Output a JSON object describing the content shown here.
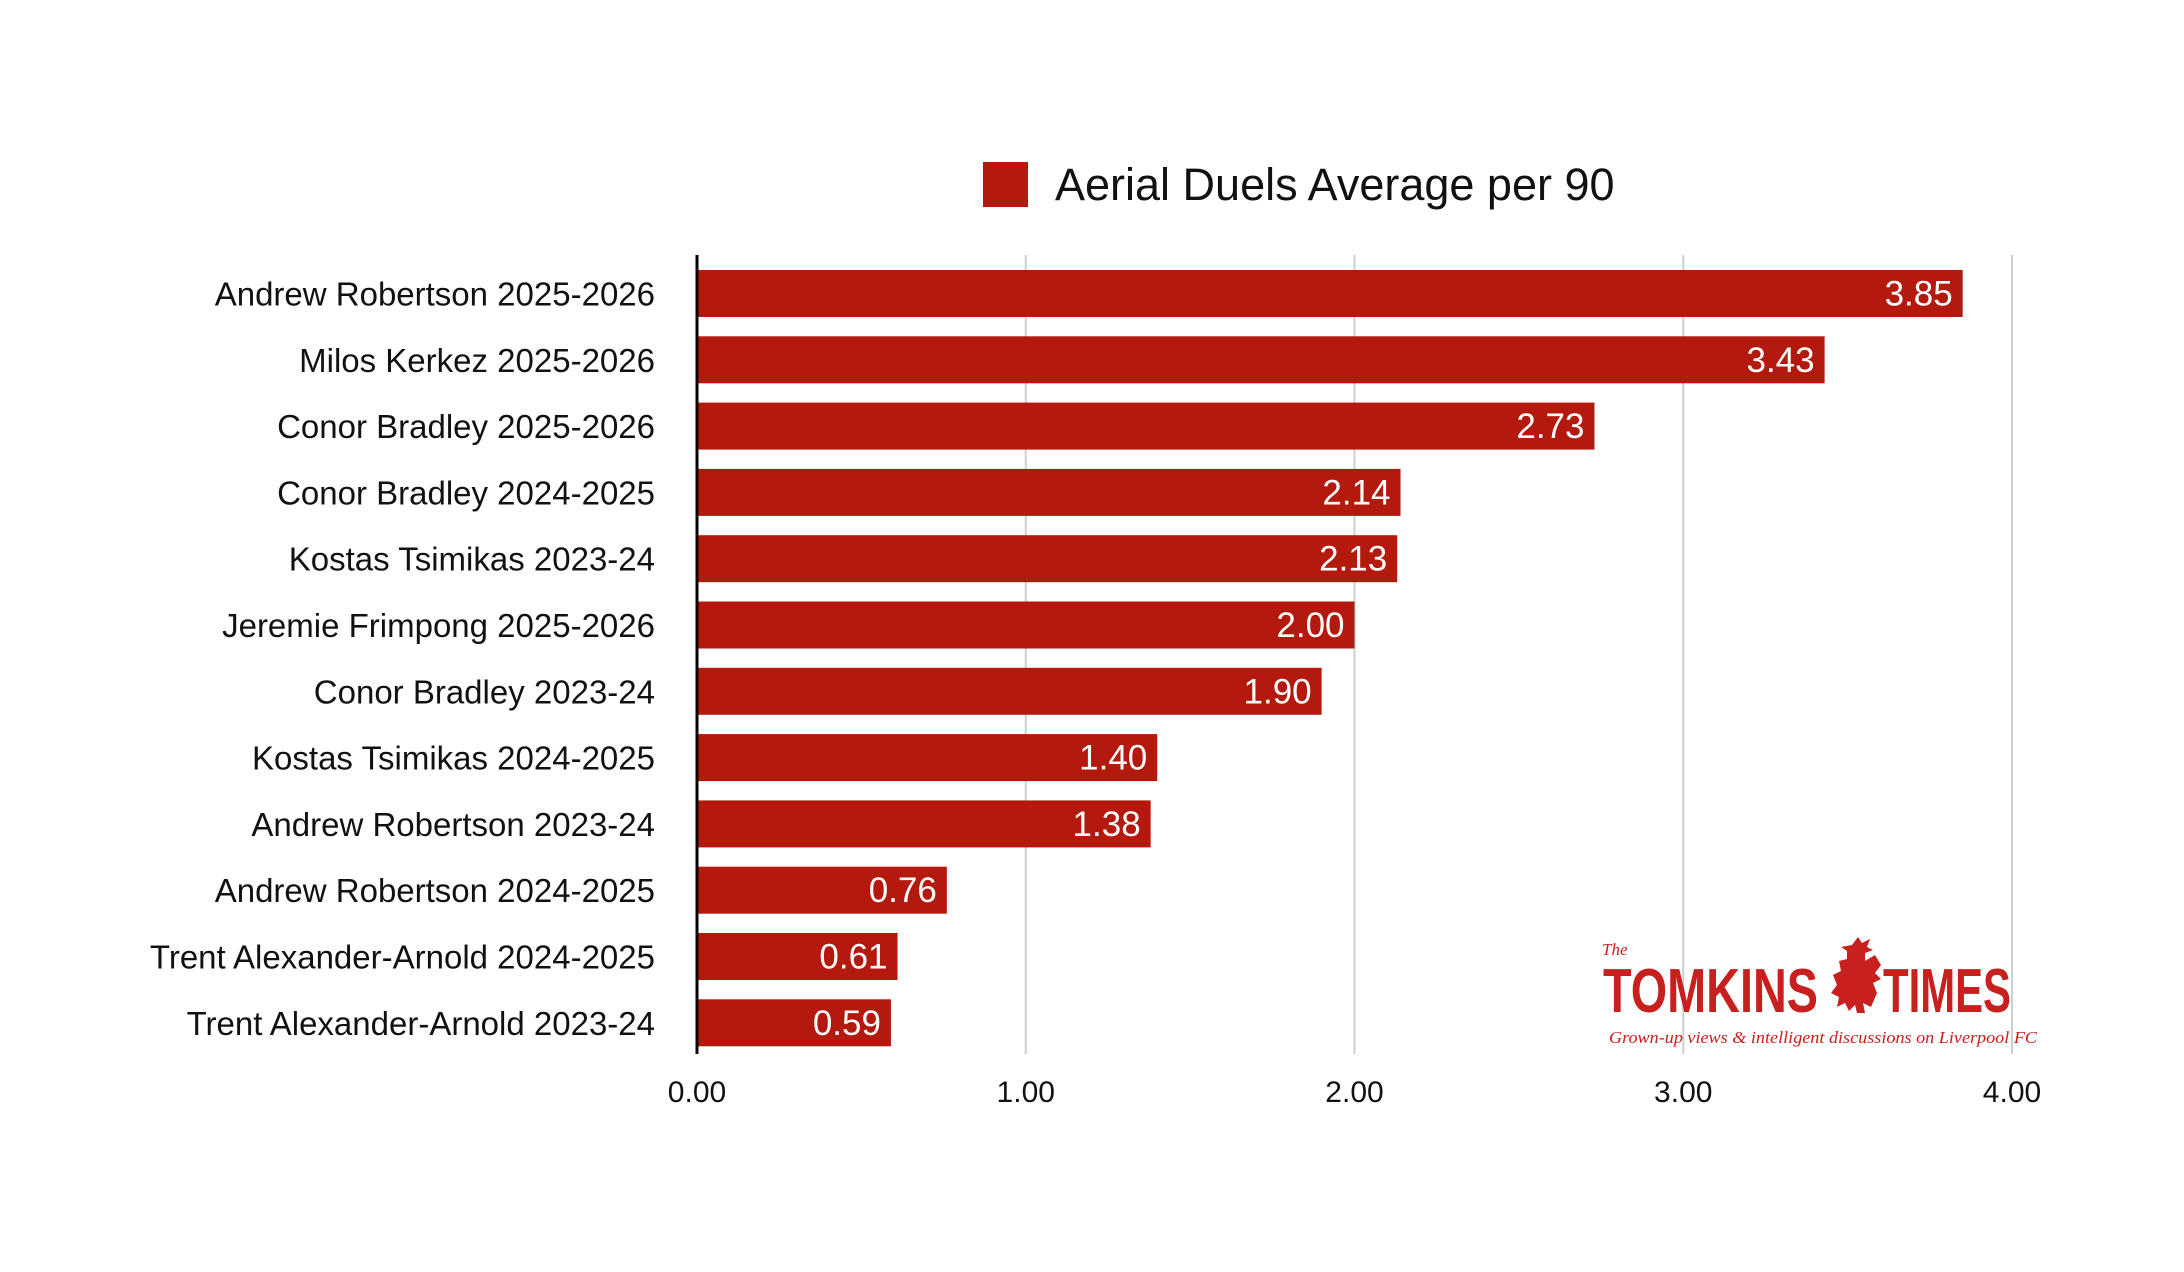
{
  "chart_data": {
    "type": "bar",
    "orientation": "horizontal",
    "categories": [
      "Andrew Robertson 2025-2026",
      "Milos Kerkez 2025-2026",
      "Conor Bradley 2025-2026",
      "Conor Bradley 2024-2025",
      "Kostas Tsimikas 2023-24",
      "Jeremie Frimpong 2025-2026",
      "Conor Bradley 2023-24",
      "Kostas Tsimikas 2024-2025",
      "Andrew Robertson 2023-24",
      "Andrew Robertson 2024-2025",
      "Trent Alexander-Arnold 2024-2025",
      "Trent Alexander-Arnold 2023-24"
    ],
    "series": [
      {
        "name": "Aerial Duels Average per 90",
        "values": [
          3.85,
          3.43,
          2.73,
          2.14,
          2.13,
          2.0,
          1.9,
          1.4,
          1.38,
          0.76,
          0.61,
          0.59
        ],
        "value_labels": [
          "3.85",
          "3.43",
          "2.73",
          "2.14",
          "2.13",
          "2.00",
          "1.90",
          "1.40",
          "1.38",
          "0.76",
          "0.61",
          "0.59"
        ],
        "color": "#b31a0d"
      }
    ],
    "xlim": [
      0,
      4
    ],
    "x_ticks": [
      0,
      1,
      2,
      3,
      4
    ],
    "x_tick_labels": [
      "0.00",
      "1.00",
      "2.00",
      "3.00",
      "4.00"
    ],
    "grid": true,
    "legend_position": "top",
    "title": "",
    "xlabel": "",
    "ylabel": ""
  },
  "logo": {
    "the": "The",
    "word_left": "TOMKINS",
    "word_right": "TIMES",
    "tagline": "Grown-up views & intelligent discussions on Liverpool FC",
    "color": "#c8201e"
  },
  "colors": {
    "bar": "#b31a0d",
    "grid": "#cfcfcf",
    "axis": "#000000",
    "text": "#111111"
  }
}
